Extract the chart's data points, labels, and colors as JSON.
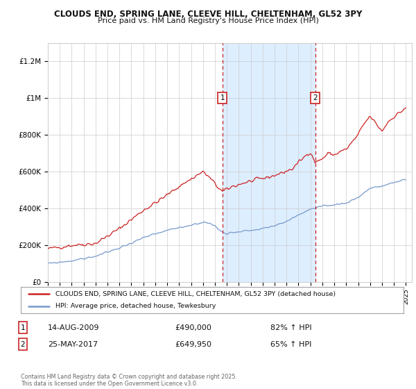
{
  "title_line1": "CLOUDS END, SPRING LANE, CLEEVE HILL, CHELTENHAM, GL52 3PY",
  "title_line2": "Price paid vs. HM Land Registry's House Price Index (HPI)",
  "legend_label1": "CLOUDS END, SPRING LANE, CLEEVE HILL, CHELTENHAM, GL52 3PY (detached house)",
  "legend_label2": "HPI: Average price, detached house, Tewkesbury",
  "annotation1": {
    "num": "1",
    "date": "14-AUG-2009",
    "price": "£490,000",
    "pct": "82% ↑ HPI"
  },
  "annotation2": {
    "num": "2",
    "date": "25-MAY-2017",
    "price": "£649,950",
    "pct": "65% ↑ HPI"
  },
  "footnote": "Contains HM Land Registry data © Crown copyright and database right 2025.\nThis data is licensed under the Open Government Licence v3.0.",
  "vline1_year": 2009.62,
  "vline2_year": 2017.4,
  "ylim": [
    0,
    1300000
  ],
  "yticks": [
    0,
    200000,
    400000,
    600000,
    800000,
    1000000,
    1200000
  ],
  "ytick_labels": [
    "£0",
    "£200K",
    "£400K",
    "£600K",
    "£800K",
    "£1M",
    "£1.2M"
  ],
  "background_color": "#ffffff",
  "plot_bg_color": "#ffffff",
  "red_line_color": "#cc2222",
  "blue_line_color": "#7799cc",
  "vline_color": "#cc2222",
  "shade_color": "#ddeeff",
  "grid_color": "#cccccc",
  "xlim_start": 1995,
  "xlim_end": 2025.5,
  "red_anchors": [
    [
      1995.0,
      180000
    ],
    [
      1997.0,
      200000
    ],
    [
      1999.0,
      210000
    ],
    [
      2001.0,
      290000
    ],
    [
      2003.0,
      390000
    ],
    [
      2004.5,
      450000
    ],
    [
      2006.0,
      520000
    ],
    [
      2007.5,
      580000
    ],
    [
      2008.0,
      600000
    ],
    [
      2008.5,
      570000
    ],
    [
      2009.62,
      490000
    ],
    [
      2010.5,
      520000
    ],
    [
      2011.5,
      540000
    ],
    [
      2012.5,
      555000
    ],
    [
      2013.5,
      570000
    ],
    [
      2014.5,
      590000
    ],
    [
      2015.5,
      615000
    ],
    [
      2016.0,
      650000
    ],
    [
      2016.5,
      680000
    ],
    [
      2017.0,
      710000
    ],
    [
      2017.4,
      649950
    ],
    [
      2018.0,
      670000
    ],
    [
      2018.5,
      700000
    ],
    [
      2019.0,
      690000
    ],
    [
      2019.5,
      710000
    ],
    [
      2020.0,
      720000
    ],
    [
      2020.5,
      760000
    ],
    [
      2021.0,
      800000
    ],
    [
      2021.5,
      860000
    ],
    [
      2022.0,
      900000
    ],
    [
      2022.5,
      860000
    ],
    [
      2023.0,
      820000
    ],
    [
      2023.5,
      870000
    ],
    [
      2024.0,
      900000
    ],
    [
      2024.5,
      920000
    ],
    [
      2025.0,
      950000
    ]
  ],
  "blue_anchors": [
    [
      1995.0,
      100000
    ],
    [
      1997.0,
      115000
    ],
    [
      1999.0,
      140000
    ],
    [
      2001.0,
      185000
    ],
    [
      2003.0,
      240000
    ],
    [
      2005.0,
      280000
    ],
    [
      2007.0,
      310000
    ],
    [
      2008.0,
      325000
    ],
    [
      2008.5,
      320000
    ],
    [
      2009.0,
      305000
    ],
    [
      2009.5,
      275000
    ],
    [
      2010.0,
      265000
    ],
    [
      2010.5,
      270000
    ],
    [
      2011.0,
      275000
    ],
    [
      2012.0,
      280000
    ],
    [
      2013.0,
      290000
    ],
    [
      2014.0,
      305000
    ],
    [
      2015.0,
      330000
    ],
    [
      2016.0,
      365000
    ],
    [
      2017.0,
      395000
    ],
    [
      2018.0,
      410000
    ],
    [
      2019.0,
      420000
    ],
    [
      2020.0,
      430000
    ],
    [
      2021.0,
      460000
    ],
    [
      2022.0,
      510000
    ],
    [
      2023.0,
      520000
    ],
    [
      2024.0,
      540000
    ],
    [
      2025.0,
      560000
    ]
  ]
}
